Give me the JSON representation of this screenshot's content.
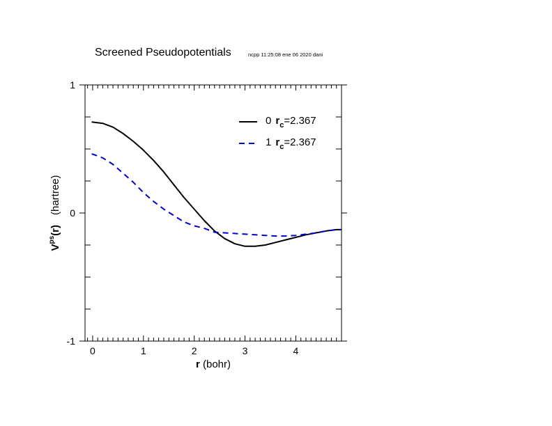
{
  "chart_data": {
    "type": "line",
    "title": "Screened Pseudopotentials",
    "subtitle": "ncpp 11:25:08 ene 06 2020 dani",
    "xlabel_bold": "r",
    "xlabel_rest": " (bohr)",
    "ylabel_main": "V",
    "ylabel_sup": "ps",
    "ylabel_arg": "(r)",
    "ylabel_unit": "(hartree)",
    "xlim": [
      -0.15,
      4.9
    ],
    "ylim": [
      -1,
      1
    ],
    "x_ticks": [
      0,
      1,
      2,
      3,
      4
    ],
    "x_tick_labels": [
      "0",
      "1",
      "2",
      "3",
      "4"
    ],
    "y_ticks": [
      -1,
      0,
      1
    ],
    "y_tick_labels": [
      "-1",
      "0",
      "1"
    ],
    "grid": false,
    "legend_position": "top-right",
    "series": [
      {
        "name": "0",
        "rc_label": "r",
        "rc_sub": "c",
        "rc_value": "=2.367",
        "color": "#000000",
        "dash": "solid",
        "x": [
          -0.02,
          0,
          0.2,
          0.4,
          0.6,
          0.8,
          1.0,
          1.2,
          1.4,
          1.6,
          1.8,
          2.0,
          2.2,
          2.4,
          2.6,
          2.8,
          3.0,
          3.2,
          3.4,
          3.6,
          3.8,
          4.0,
          4.2,
          4.4,
          4.6,
          4.8,
          4.9
        ],
        "y": [
          0.71,
          0.71,
          0.7,
          0.67,
          0.62,
          0.56,
          0.49,
          0.41,
          0.32,
          0.22,
          0.12,
          0.03,
          -0.06,
          -0.14,
          -0.2,
          -0.24,
          -0.26,
          -0.26,
          -0.25,
          -0.23,
          -0.21,
          -0.19,
          -0.17,
          -0.155,
          -0.14,
          -0.13,
          -0.13
        ]
      },
      {
        "name": "1",
        "rc_label": "r",
        "rc_sub": "c",
        "rc_value": "=2.367",
        "color": "#0000cc",
        "dash": "dashed",
        "x": [
          -0.02,
          0,
          0.2,
          0.4,
          0.6,
          0.8,
          1.0,
          1.2,
          1.4,
          1.6,
          1.8,
          2.0,
          2.2,
          2.4,
          2.6,
          2.8,
          3.0,
          3.2,
          3.4,
          3.6,
          3.8,
          4.0,
          4.2,
          4.4,
          4.6,
          4.8,
          4.9
        ],
        "y": [
          0.46,
          0.46,
          0.43,
          0.38,
          0.31,
          0.24,
          0.16,
          0.09,
          0.03,
          -0.02,
          -0.07,
          -0.1,
          -0.12,
          -0.15,
          -0.155,
          -0.16,
          -0.165,
          -0.17,
          -0.175,
          -0.18,
          -0.18,
          -0.175,
          -0.165,
          -0.155,
          -0.14,
          -0.13,
          -0.13
        ]
      }
    ]
  }
}
